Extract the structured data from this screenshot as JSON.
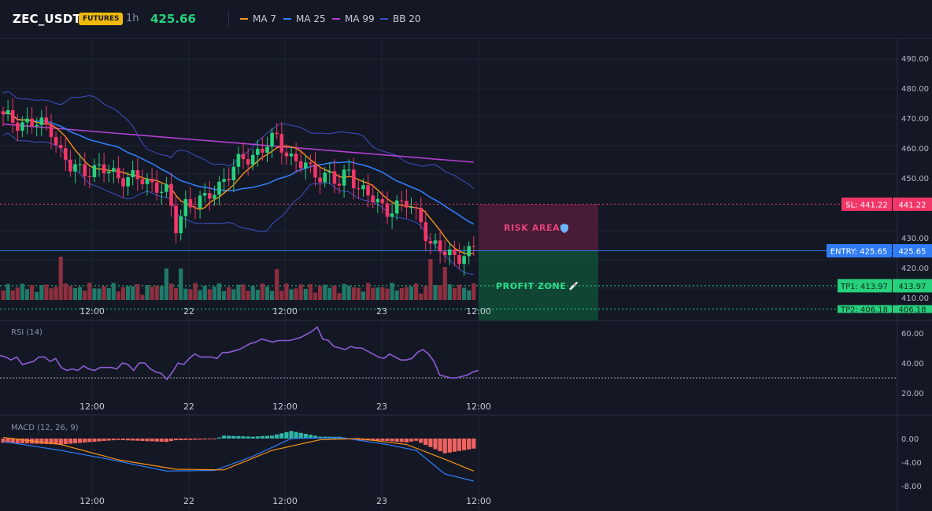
{
  "header": {
    "symbol": "ZEC_USDT",
    "badge": "FUTURES",
    "timeframe": "1h",
    "last_price": "425.66"
  },
  "legend": [
    {
      "label": "MA 7",
      "color": "#f7931a"
    },
    {
      "label": "MA 25",
      "color": "#2f7cf6"
    },
    {
      "label": "MA 99",
      "color": "#b13fcf"
    },
    {
      "label": "BB 20",
      "color": "#3d4fc4"
    }
  ],
  "colors": {
    "up": "#26d07c",
    "down": "#f23668",
    "vol_up": "#1f7a6a",
    "vol_down": "#8e2f3f",
    "rsi": "#8c5cd6",
    "macd": "#2f7cf6",
    "signal": "#f7931a",
    "hist_up": "#2fb5a8",
    "hist_down": "#f0625f"
  },
  "x_axis_labels": [
    "12:00",
    "22",
    "12:00",
    "23",
    "12:00"
  ],
  "price_axis": {
    "ticks": [
      "490.00",
      "480.00",
      "470.00",
      "460.00",
      "450.00",
      "430.00",
      "420.00",
      "410.00"
    ]
  },
  "levels": {
    "sl": {
      "label": "SL: 441.22",
      "value": "441.22",
      "price": 441.22
    },
    "entry": {
      "label": "ENTRY: 425.65",
      "value": "425.65",
      "price": 425.65
    },
    "tp1": {
      "label": "TP1: 413.97",
      "value": "413.97",
      "price": 413.97
    },
    "tp2": {
      "label": "TP2: 406.18",
      "value": "406.18",
      "price": 406.18
    }
  },
  "zones": {
    "risk": {
      "label": "RISK AREA",
      "icon": "shield-icon"
    },
    "profit": {
      "label": "PROFIT ZONE",
      "icon": "rocket-icon"
    }
  },
  "rsi": {
    "title": "RSI (14)",
    "ticks": [
      "60.00",
      "40.00",
      "20.00"
    ],
    "reference_level": 30,
    "values": [
      45,
      44,
      42,
      44,
      39,
      40,
      41,
      44,
      44,
      41,
      43,
      37,
      35,
      36,
      35,
      38,
      36,
      35,
      37,
      37,
      37,
      36,
      40,
      39,
      35,
      40,
      40,
      36,
      34,
      33,
      29,
      34,
      40,
      39,
      43,
      46,
      44,
      44,
      44,
      43,
      47,
      47,
      48,
      49,
      51,
      53,
      54,
      56,
      55,
      54,
      55,
      55,
      55,
      56,
      57,
      59,
      61,
      64,
      56,
      55,
      51,
      50,
      49,
      51,
      50,
      50,
      48,
      46,
      44,
      43,
      46,
      44,
      42,
      42,
      43,
      47,
      49,
      46,
      41,
      32,
      31,
      30,
      30,
      31,
      32,
      34,
      35
    ]
  },
  "macd": {
    "title": "MACD (12, 26, 9)",
    "ticks": [
      "0.00",
      "-4.00",
      "-8.00"
    ]
  }
}
